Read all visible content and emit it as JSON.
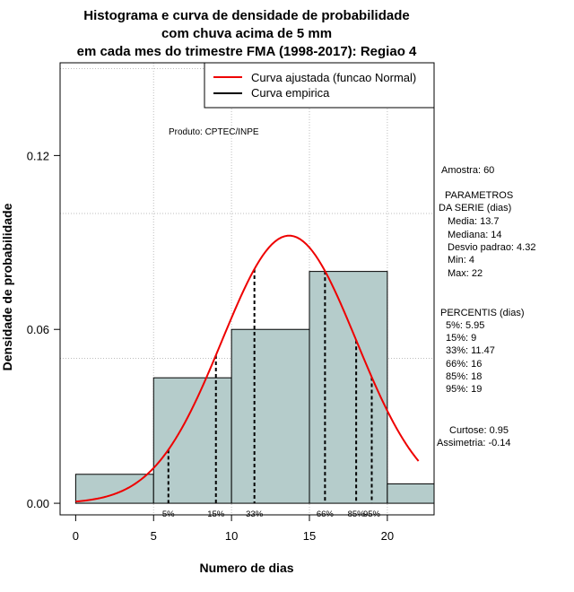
{
  "chart_data": {
    "type": "bar",
    "title_lines": [
      "Histograma e curva de densidade de probabilidade",
      "com chuva acima de 5 mm",
      "em cada mes do trimestre FMA (1998-2017): Regiao 4"
    ],
    "xlabel": "Numero de dias",
    "ylabel": "Densidade de probabilidade",
    "xlim": [
      -1,
      23
    ],
    "ylim": [
      -0.004,
      0.152
    ],
    "x_ticks": [
      0,
      5,
      10,
      15,
      20
    ],
    "x_tick_labels": [
      "0",
      "5",
      "10",
      "15",
      "20"
    ],
    "y_ticks": [
      0.0,
      0.06,
      0.12
    ],
    "y_tick_labels": [
      "0.00",
      "0.06",
      "0.12"
    ],
    "grid_x": [
      5,
      10,
      15,
      20
    ],
    "grid_y": [
      0.05,
      0.1,
      0.15
    ],
    "histogram": {
      "bins": [
        [
          0,
          5
        ],
        [
          5,
          10
        ],
        [
          10,
          15
        ],
        [
          15,
          20
        ],
        [
          20,
          23
        ]
      ],
      "density": [
        0.01,
        0.0433,
        0.06,
        0.08,
        0.0067
      ]
    },
    "normal_fit": {
      "name": "Curva ajustada (funcao Normal)",
      "mean": 13.7,
      "sd": 4.32,
      "x_range": [
        0,
        22
      ],
      "color": "#ee0000"
    },
    "empirical_name": "Curva empirica",
    "legend": [
      {
        "label": "Curva ajustada (funcao Normal)",
        "color": "#ee0000"
      },
      {
        "label": "Curva empirica",
        "color": "#000000"
      }
    ],
    "legend_position": "top-right",
    "product_label": "Produto: CPTEC/INPE",
    "percentiles": [
      {
        "label": "5%",
        "x": 5.95
      },
      {
        "label": "15%",
        "x": 9
      },
      {
        "label": "33%",
        "x": 11.47
      },
      {
        "label": "66%",
        "x": 16
      },
      {
        "label": "85%",
        "x": 18
      },
      {
        "label": "95%",
        "x": 19
      }
    ]
  },
  "stats_panel": {
    "sample": "Amostra: 60",
    "params_header_1": "PARAMETROS",
    "params_header_2": "DA SERIE (dias)",
    "params": [
      "Media: 13.7",
      "Mediana: 14",
      "Desvio padrao: 4.32",
      "Min: 4",
      "Max: 22"
    ],
    "percentis_header": "PERCENTIS (dias)",
    "percentis": [
      "5%: 5.95",
      "15%: 9",
      "33%: 11.47",
      "66%: 16",
      "85%: 18",
      "95%: 19"
    ],
    "curtose": "Curtose: 0.95",
    "assimetria": "Assimetria: -0.14"
  },
  "colors": {
    "bar_fill": "#b5cccb",
    "grid": "#bdbdbd",
    "curve": "#ee0000"
  }
}
